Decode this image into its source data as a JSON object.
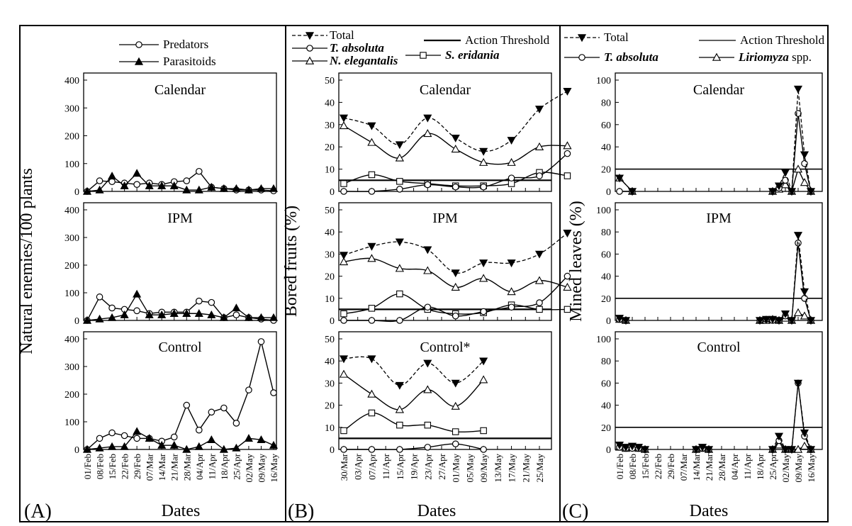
{
  "figure": {
    "panel_labels": [
      "(A)",
      "(B)",
      "(C)"
    ]
  },
  "chart_data": [
    {
      "panel": "(A)",
      "type": "line",
      "ylabel": "Natural enemies/100 plants",
      "xlabel": "Dates",
      "ylim": [
        0,
        400
      ],
      "yticks": [
        0,
        100,
        200,
        300,
        400
      ],
      "x_tick_labels": [
        "01/Feb",
        "08/Feb",
        "15/Feb",
        "22/Feb",
        "29/Feb",
        "07/Mar",
        "14/Mar",
        "21/Mar",
        "28/Mar",
        "04/Apr",
        "11/Apr",
        "18/Apr",
        "25/Apr",
        "02/May",
        "09/May",
        "16/May"
      ],
      "legend": [
        {
          "name": "Predators",
          "marker": "circle-open"
        },
        {
          "name": "Parasitoids",
          "marker": "triangle-filled"
        }
      ],
      "subplots": [
        {
          "title": "Calendar",
          "series": [
            {
              "name": "Predators",
              "values": [
                0,
                38,
                35,
                30,
                25,
                30,
                25,
                35,
                38,
                72,
                15,
                10,
                5,
                5,
                5,
                2
              ]
            },
            {
              "name": "Parasitoids",
              "values": [
                0,
                5,
                55,
                20,
                65,
                20,
                20,
                20,
                5,
                5,
                15,
                10,
                10,
                5,
                10,
                10
              ]
            }
          ]
        },
        {
          "title": "IPM",
          "series": [
            {
              "name": "Predators",
              "values": [
                0,
                85,
                45,
                40,
                35,
                25,
                30,
                30,
                30,
                70,
                65,
                10,
                20,
                10,
                5,
                0
              ]
            },
            {
              "name": "Parasitoids",
              "values": [
                0,
                5,
                10,
                20,
                95,
                20,
                20,
                25,
                25,
                25,
                20,
                10,
                45,
                10,
                10,
                10
              ]
            }
          ]
        },
        {
          "title": "Control",
          "series": [
            {
              "name": "Predators",
              "values": [
                0,
                40,
                60,
                50,
                40,
                40,
                30,
                45,
                160,
                70,
                135,
                150,
                95,
                215,
                390,
                205
              ]
            },
            {
              "name": "Parasitoids",
              "values": [
                0,
                5,
                10,
                10,
                65,
                40,
                15,
                15,
                0,
                10,
                35,
                0,
                5,
                40,
                35,
                15
              ]
            }
          ]
        }
      ]
    },
    {
      "panel": "(B)",
      "type": "line",
      "ylabel": "Bored  fruits (%)",
      "xlabel": "Dates",
      "ylim": [
        0,
        50
      ],
      "yticks": [
        0,
        10,
        20,
        30,
        40,
        50
      ],
      "x_tick_labels": [
        "30/Mar",
        "03/Apr",
        "07/Apr",
        "11/Apr",
        "15/Apr",
        "19/Apr",
        "23/Apr",
        "27/Apr",
        "01/May",
        "05/May",
        "09/May",
        "13/May",
        "17/May",
        "21/May",
        "25/May"
      ],
      "action_threshold": 5,
      "legend": [
        {
          "name": "Total",
          "style": "dashed",
          "marker": "triangle-down-filled"
        },
        {
          "name": "Action Threshold",
          "style": "solid-thick"
        },
        {
          "name": "T. absoluta",
          "marker": "circle-open"
        },
        {
          "name": "S. eridania",
          "marker": "square-open"
        },
        {
          "name": "N. elegantalis",
          "marker": "triangle-open"
        }
      ],
      "subplots": [
        {
          "title": "Calendar",
          "series": [
            {
              "name": "Total",
              "x": [
                0,
                2,
                4,
                6,
                8,
                10,
                12,
                14,
                16
              ],
              "values": [
                33,
                29.5,
                21,
                33,
                24,
                18,
                23,
                37,
                45
              ]
            },
            {
              "name": "N. elegantalis",
              "x": [
                0,
                2,
                4,
                6,
                8,
                10,
                12,
                14,
                16
              ],
              "values": [
                29.5,
                22,
                15,
                26,
                19,
                13,
                13,
                20,
                20.5
              ]
            },
            {
              "name": "S. eridania",
              "x": [
                0,
                2,
                4,
                6,
                8,
                10,
                12,
                14,
                16
              ],
              "values": [
                3.5,
                7.5,
                4.5,
                3.5,
                2.5,
                2.5,
                3.5,
                8.5,
                7
              ]
            },
            {
              "name": "T. absoluta",
              "x": [
                0,
                2,
                4,
                6,
                8,
                10,
                12,
                14,
                16
              ],
              "values": [
                0,
                0,
                1,
                3,
                2,
                2,
                6,
                7,
                17
              ]
            }
          ]
        },
        {
          "title": "IPM",
          "series": [
            {
              "name": "Total",
              "x": [
                0,
                2,
                4,
                6,
                8,
                10,
                12,
                14,
                16
              ],
              "values": [
                29.5,
                33.5,
                35.5,
                32,
                21.5,
                26,
                26,
                30,
                39.5
              ]
            },
            {
              "name": "N. elegantalis",
              "x": [
                0,
                2,
                4,
                6,
                8,
                10,
                12,
                14,
                16
              ],
              "values": [
                26.5,
                28,
                23.5,
                22.5,
                15,
                19,
                13,
                18,
                15
              ]
            },
            {
              "name": "S. eridania",
              "x": [
                0,
                2,
                4,
                6,
                8,
                10,
                12,
                14,
                16
              ],
              "values": [
                3,
                5.5,
                12,
                5,
                3,
                3.5,
                7,
                5,
                5
              ]
            },
            {
              "name": "T. absoluta",
              "x": [
                0,
                2,
                4,
                6,
                8,
                10,
                12,
                14,
                16
              ],
              "values": [
                0,
                0,
                0,
                6,
                2,
                4,
                6,
                8,
                20
              ]
            }
          ]
        },
        {
          "title": "Control*",
          "series": [
            {
              "name": "Total",
              "x": [
                0,
                2,
                4,
                6,
                8,
                10
              ],
              "values": [
                41,
                41,
                29,
                39,
                30,
                40
              ]
            },
            {
              "name": "N. elegantalis",
              "x": [
                0,
                2,
                4,
                6,
                8,
                10
              ],
              "values": [
                34,
                25,
                18,
                27,
                19.5,
                31.5
              ]
            },
            {
              "name": "S. eridania",
              "x": [
                0,
                2,
                4,
                6,
                8,
                10
              ],
              "values": [
                8.5,
                16.5,
                11,
                11,
                8,
                8.5
              ]
            },
            {
              "name": "T. absoluta",
              "x": [
                0,
                2,
                4,
                6,
                8,
                10
              ],
              "values": [
                0,
                0,
                0,
                1,
                2.5,
                0
              ]
            }
          ]
        }
      ]
    },
    {
      "panel": "(C)",
      "type": "line",
      "ylabel": "Mined  leaves (%)",
      "xlabel": "Dates",
      "ylim": [
        0,
        100
      ],
      "yticks": [
        0,
        20,
        40,
        60,
        80,
        100
      ],
      "x_tick_labels": [
        "01/Feb",
        "08/Feb",
        "15/Feb",
        "22/Feb",
        "29/Feb",
        "07/Mar",
        "14/Mar",
        "21/Mar",
        "28/Mar",
        "04/Apr",
        "11/Apr",
        "18/Apr",
        "25/Apr",
        "02/May",
        "09/May",
        "16/May"
      ],
      "action_threshold": 20,
      "legend": [
        {
          "name": "Total",
          "style": "dashed",
          "marker": "triangle-down-filled"
        },
        {
          "name": "Action Threshold",
          "style": "solid"
        },
        {
          "name": "T. absoluta",
          "marker": "circle-open"
        },
        {
          "name": "Liriomyza spp.",
          "marker": "triangle-open"
        }
      ],
      "subplots": [
        {
          "title": "Calendar",
          "segments": [
            {
              "x": [
                0,
                1
              ],
              "series": [
                {
                  "name": "Total",
                  "values": [
                    12,
                    0
                  ]
                },
                {
                  "name": "T. absoluta",
                  "values": [
                    0,
                    0
                  ]
                },
                {
                  "name": "Liriomyza spp.",
                  "values": [
                    12,
                    0
                  ]
                }
              ]
            },
            {
              "x": [
                12,
                12.5,
                13,
                13.5,
                14,
                14.5,
                15
              ],
              "series": [
                {
                  "name": "Total",
                  "values": [
                    0,
                    5,
                    17,
                    0,
                    92,
                    33,
                    0
                  ]
                },
                {
                  "name": "T. absoluta",
                  "values": [
                    0,
                    3,
                    10,
                    0,
                    70,
                    25,
                    0
                  ]
                },
                {
                  "name": "Liriomyza spp.",
                  "values": [
                    0,
                    2,
                    6,
                    0,
                    20,
                    8,
                    0
                  ]
                }
              ]
            }
          ]
        },
        {
          "title": "IPM",
          "segments": [
            {
              "x": [
                0,
                0.5
              ],
              "series": [
                {
                  "name": "Total",
                  "values": [
                    2,
                    0
                  ]
                },
                {
                  "name": "T. absoluta",
                  "values": [
                    1,
                    0
                  ]
                },
                {
                  "name": "Liriomyza spp.",
                  "values": [
                    1,
                    0
                  ]
                }
              ]
            },
            {
              "x": [
                11,
                11.5,
                12,
                12.5,
                13,
                13.5,
                14,
                14.5,
                15
              ],
              "series": [
                {
                  "name": "Total",
                  "values": [
                    0,
                    1,
                    1,
                    0,
                    6,
                    0,
                    77,
                    26,
                    0
                  ]
                },
                {
                  "name": "T. absoluta",
                  "values": [
                    0,
                    1,
                    0,
                    0,
                    4,
                    0,
                    70,
                    20,
                    0
                  ]
                },
                {
                  "name": "Liriomyza spp.",
                  "values": [
                    0,
                    0,
                    1,
                    0,
                    2,
                    0,
                    7,
                    4,
                    0
                  ]
                }
              ]
            }
          ]
        },
        {
          "title": "Control",
          "segments": [
            {
              "x": [
                0,
                0.5,
                1,
                1.5,
                2
              ],
              "series": [
                {
                  "name": "Total",
                  "values": [
                    4,
                    2,
                    3,
                    2,
                    0
                  ]
                },
                {
                  "name": "T. absoluta",
                  "values": [
                    2,
                    1,
                    1,
                    1,
                    0
                  ]
                },
                {
                  "name": "Liriomyza spp.",
                  "values": [
                    2,
                    1,
                    2,
                    1,
                    0
                  ]
                }
              ]
            },
            {
              "x": [
                6,
                6.5,
                7
              ],
              "series": [
                {
                  "name": "Total",
                  "values": [
                    0,
                    2,
                    0
                  ]
                },
                {
                  "name": "T. absoluta",
                  "values": [
                    0,
                    1,
                    0
                  ]
                },
                {
                  "name": "Liriomyza spp.",
                  "values": [
                    0,
                    1,
                    0
                  ]
                }
              ]
            },
            {
              "x": [
                12,
                12.5,
                13,
                13.5,
                14,
                14.5,
                15
              ],
              "series": [
                {
                  "name": "Total",
                  "values": [
                    0,
                    12,
                    0,
                    0,
                    60,
                    15,
                    0
                  ]
                },
                {
                  "name": "T. absoluta",
                  "values": [
                    0,
                    8,
                    0,
                    0,
                    60,
                    12,
                    0
                  ]
                },
                {
                  "name": "Liriomyza spp.",
                  "values": [
                    0,
                    4,
                    0,
                    0,
                    0,
                    3,
                    0
                  ]
                }
              ]
            }
          ]
        }
      ]
    }
  ]
}
